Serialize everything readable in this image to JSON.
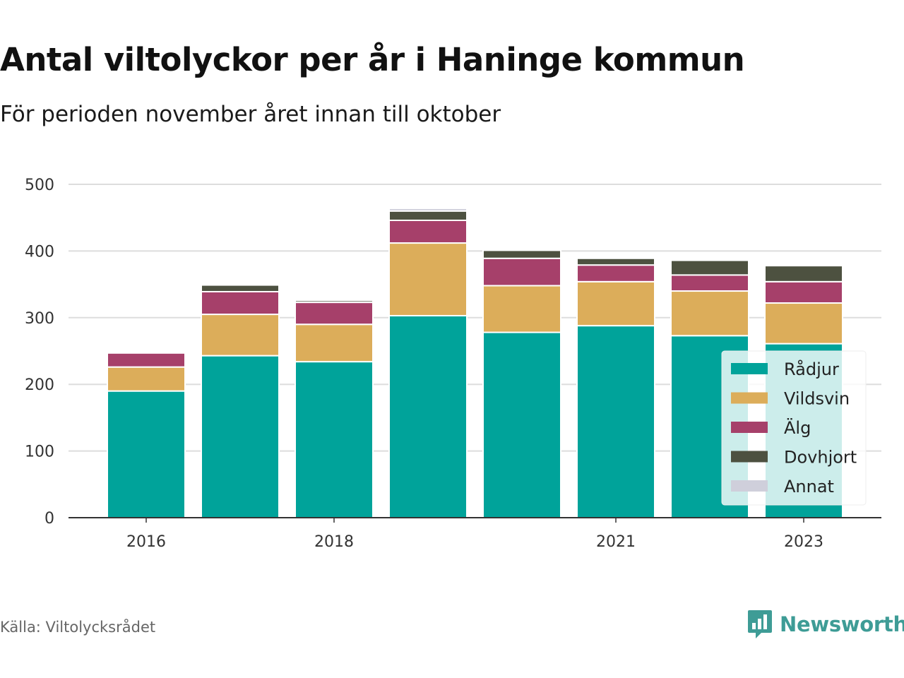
{
  "title": "Antal viltolyckor per år i Haninge kommun",
  "subtitle": "För perioden november året innan till oktober",
  "source": "Källa: Viltolycksrådet",
  "brand": "Newsworthy",
  "chart_data": {
    "type": "bar",
    "stacked": true,
    "x": [
      2016,
      2017,
      2018,
      2019,
      2020,
      2021,
      2022,
      2023
    ],
    "x_tick_labels": [
      {
        "x": 2016,
        "label": "2016"
      },
      {
        "x": 2018,
        "label": "2018"
      },
      {
        "x": 2021,
        "label": "2021"
      },
      {
        "x": 2023,
        "label": "2023"
      }
    ],
    "series": [
      {
        "name": "Rådjur",
        "color": "#00a39a",
        "values": [
          190,
          243,
          234,
          303,
          278,
          288,
          273,
          261
        ]
      },
      {
        "name": "Vildsvin",
        "color": "#dcad5a",
        "values": [
          36,
          62,
          56,
          109,
          70,
          66,
          67,
          61
        ]
      },
      {
        "name": "Älg",
        "color": "#a6406a",
        "values": [
          21,
          34,
          33,
          34,
          41,
          25,
          24,
          32
        ]
      },
      {
        "name": "Dovhjort",
        "color": "#4d5140",
        "values": [
          0,
          10,
          3,
          14,
          12,
          10,
          22,
          24
        ]
      },
      {
        "name": "Annat",
        "color": "#cfcfdb",
        "values": [
          0,
          1,
          2,
          4,
          0,
          0,
          0,
          0
        ]
      }
    ],
    "ylim": [
      0,
      500
    ],
    "yticks": [
      0,
      100,
      200,
      300,
      400,
      500
    ],
    "grid": true,
    "legend_position": "bottom-right"
  }
}
